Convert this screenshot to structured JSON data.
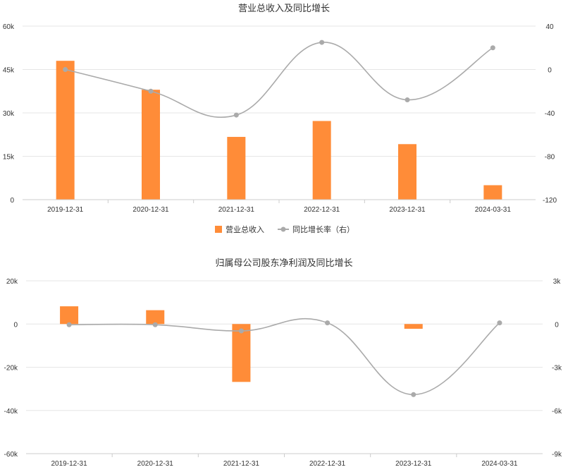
{
  "chart_data": [
    {
      "type": "bar",
      "title": "营业总收入及同比增长",
      "categories": [
        "2019-12-31",
        "2020-12-31",
        "2021-12-31",
        "2022-12-31",
        "2023-12-31",
        "2024-03-31"
      ],
      "y_left": {
        "min": 0,
        "max": 60000,
        "ticks": [
          "0",
          "15k",
          "30k",
          "45k",
          "60k"
        ],
        "tick_values": [
          0,
          15000,
          30000,
          45000,
          60000
        ]
      },
      "y_right": {
        "min": -120,
        "max": 40,
        "ticks": [
          "-120",
          "-80",
          "-40",
          "0",
          "40"
        ],
        "tick_values": [
          -120,
          -80,
          -40,
          0,
          40
        ]
      },
      "series": [
        {
          "name": "营业总收入",
          "type": "bar",
          "axis": "left",
          "color": "#ff8c38",
          "values": [
            48000,
            38000,
            21700,
            27200,
            19200,
            5000
          ]
        },
        {
          "name": "同比增长率（右）",
          "type": "line",
          "axis": "right",
          "color": "#aaaaaa",
          "values": [
            0,
            -20,
            -42,
            25,
            -28,
            20
          ]
        }
      ],
      "legend": "bottom-center",
      "grid": true
    },
    {
      "type": "bar",
      "title": "归属母公司股东净利润及同比增长",
      "categories": [
        "2019-12-31",
        "2020-12-31",
        "2021-12-31",
        "2022-12-31",
        "2023-12-31",
        "2024-03-31"
      ],
      "y_left": {
        "min": -60000,
        "max": 20000,
        "ticks": [
          "-60k",
          "-40k",
          "-20k",
          "0",
          "20k"
        ],
        "tick_values": [
          -60000,
          -40000,
          -20000,
          0,
          20000
        ]
      },
      "y_right": {
        "min": -9000,
        "max": 3000,
        "ticks": [
          "-9k",
          "-6k",
          "-3k",
          "0",
          "3k"
        ],
        "tick_values": [
          -9000,
          -6000,
          -3000,
          0,
          3000
        ]
      },
      "series": [
        {
          "name": "",
          "type": "bar",
          "axis": "left",
          "color": "#ff8c38",
          "values": [
            8200,
            6400,
            -26800,
            0,
            -2200,
            0
          ]
        },
        {
          "name": "",
          "type": "line",
          "axis": "right",
          "color": "#aaaaaa",
          "values": [
            -50,
            -50,
            -480,
            80,
            -4900,
            80
          ]
        }
      ],
      "legend": "none",
      "grid": true
    }
  ]
}
